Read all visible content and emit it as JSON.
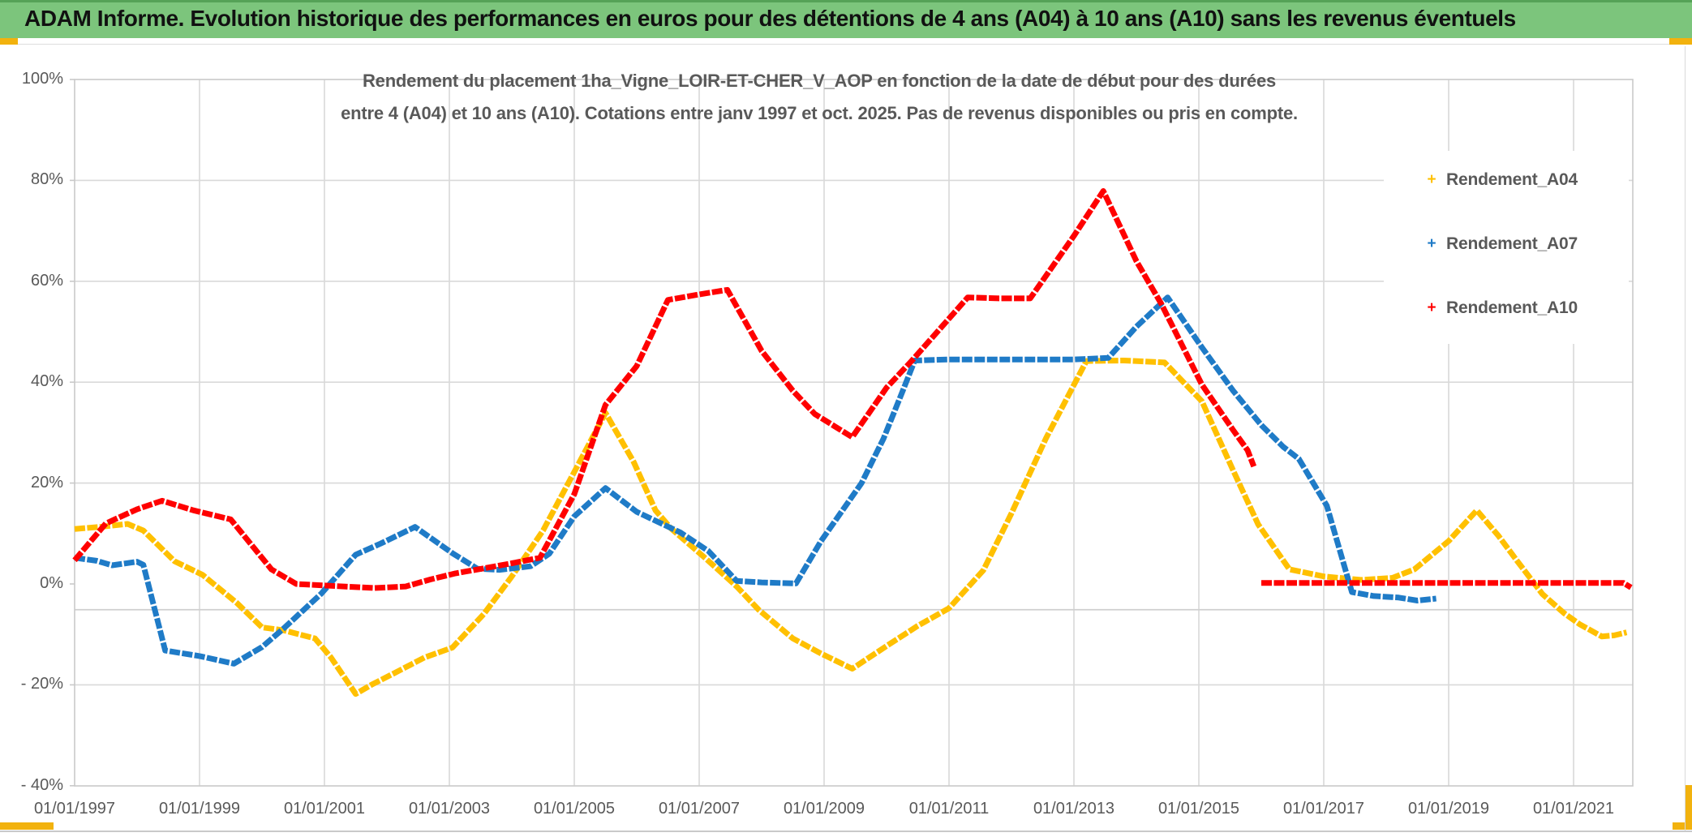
{
  "window": {
    "title": "ADAM Informe. Evolution historique des performances en euros pour des détentions de 4 ans (A04) à 10 ans (A10) sans les revenus éventuels"
  },
  "chart": {
    "subtitle_line1": "Rendement du placement 1ha_Vigne_LOIR-ET-CHER_V_AOP en fonction de la date de début pour des durées",
    "subtitle_line2": "entre 4 (A04) et 10 ans (A10). Cotations entre janv 1997 et oct. 2025. Pas de revenus disponibles ou pris en compte.",
    "colors": {
      "header_green": "#7cc57c",
      "header_green_dark": "#55a257",
      "accent_gold": "#f2b20e",
      "series_a04": "#FFC000",
      "series_a07": "#1F7BC7",
      "series_a10": "#FF0000",
      "gridline": "#d9d9d9",
      "axis_text": "#595959"
    }
  },
  "chart_data": {
    "type": "line",
    "title": "Rendement du placement 1ha_Vigne_LOIR-ET-CHER_V_AOP en fonction de la date de début pour des durées entre 4 (A04) et 10 ans (A10). Cotations entre janv 1997 et oct. 2025. Pas de revenus disponibles ou pris en compte.",
    "xlabel": "",
    "ylabel": "",
    "grid": true,
    "legend_position": "right",
    "x_axis": {
      "tick_labels": [
        "01/01/1997",
        "01/01/1999",
        "01/01/2001",
        "01/01/2003",
        "01/01/2005",
        "01/01/2007",
        "01/01/2009",
        "01/01/2011",
        "01/01/2013",
        "01/01/2015",
        "01/01/2017",
        "01/01/2019",
        "01/01/2021"
      ],
      "tick_years": [
        1997,
        1999,
        2001,
        2003,
        2005,
        2007,
        2009,
        2011,
        2013,
        2015,
        2017,
        2019,
        2021
      ],
      "range_years": [
        1997.0,
        2022.0
      ]
    },
    "y_axis": {
      "tick_labels": [
        "100%",
        "80%",
        "60%",
        "40%",
        "20%",
        "0%",
        "- 20%",
        "- 40%"
      ],
      "tick_values": [
        100,
        80,
        60,
        40,
        20,
        0,
        -20,
        -40
      ],
      "ylim": [
        -40,
        100
      ],
      "extra_reference_line": -5.1,
      "unit": "percent"
    },
    "series": [
      {
        "name": "Rendement_A04",
        "color": "#FFC000",
        "marker": "+",
        "segments": [
          [
            [
              1997.0,
              10.9
            ],
            [
              1997.4,
              11.3
            ],
            [
              1997.85,
              11.9
            ],
            [
              1998.1,
              10.6
            ],
            [
              1998.6,
              4.5
            ],
            [
              1999.05,
              1.8
            ],
            [
              1999.6,
              -3.8
            ],
            [
              2000.0,
              -8.6
            ],
            [
              2000.35,
              -9.2
            ],
            [
              2000.85,
              -10.8
            ],
            [
              2001.1,
              -14.5
            ],
            [
              2001.5,
              -21.8
            ],
            [
              2001.75,
              -20.0
            ],
            [
              2002.1,
              -17.8
            ],
            [
              2002.6,
              -14.6
            ],
            [
              2003.05,
              -12.6
            ],
            [
              2003.55,
              -6.0
            ],
            [
              2004.0,
              1.5
            ],
            [
              2004.5,
              10.6
            ],
            [
              2005.0,
              22.2
            ],
            [
              2005.5,
              33.9
            ],
            [
              2005.95,
              24.2
            ],
            [
              2006.3,
              14.6
            ],
            [
              2006.55,
              11.0
            ],
            [
              2007.1,
              5.1
            ],
            [
              2007.6,
              -0.5
            ],
            [
              2007.95,
              -5.1
            ],
            [
              2008.5,
              -10.8
            ],
            [
              2008.95,
              -13.8
            ],
            [
              2009.45,
              -16.8
            ],
            [
              2010.0,
              -12.3
            ],
            [
              2010.5,
              -8.3
            ],
            [
              2011.0,
              -4.8
            ],
            [
              2011.55,
              2.7
            ],
            [
              2012.0,
              14.0
            ],
            [
              2012.55,
              28.8
            ],
            [
              2013.2,
              44.2
            ],
            [
              2013.8,
              44.3
            ],
            [
              2014.45,
              43.9
            ],
            [
              2015.05,
              36.2
            ],
            [
              2015.55,
              22.5
            ],
            [
              2015.95,
              11.8
            ],
            [
              2016.45,
              2.9
            ],
            [
              2017.0,
              1.5
            ],
            [
              2017.6,
              0.8
            ],
            [
              2018.1,
              1.2
            ],
            [
              2018.45,
              2.9
            ],
            [
              2019.0,
              8.5
            ],
            [
              2019.45,
              14.6
            ],
            [
              2019.8,
              9.5
            ],
            [
              2020.1,
              4.5
            ],
            [
              2020.5,
              -2.0
            ],
            [
              2020.85,
              -5.8
            ],
            [
              2021.1,
              -8.0
            ],
            [
              2021.45,
              -10.4
            ],
            [
              2021.65,
              -10.2
            ],
            [
              2021.85,
              -9.6
            ]
          ]
        ]
      },
      {
        "name": "Rendement_A07",
        "color": "#1F7BC7",
        "marker": "+",
        "segments": [
          [
            [
              1997.0,
              5.2
            ],
            [
              1997.35,
              4.6
            ],
            [
              1997.6,
              3.7
            ],
            [
              1998.0,
              4.4
            ],
            [
              1998.1,
              3.8
            ],
            [
              1998.45,
              -13.2
            ],
            [
              1999.0,
              -14.3
            ],
            [
              1999.55,
              -15.8
            ],
            [
              2000.0,
              -12.5
            ],
            [
              2000.35,
              -8.8
            ],
            [
              2000.95,
              -1.9
            ],
            [
              2001.5,
              5.8
            ],
            [
              2001.9,
              8.0
            ],
            [
              2002.45,
              11.3
            ],
            [
              2003.05,
              6.1
            ],
            [
              2003.45,
              3.0
            ],
            [
              2003.8,
              2.8
            ],
            [
              2004.3,
              3.5
            ],
            [
              2004.6,
              6.0
            ],
            [
              2005.0,
              13.4
            ],
            [
              2005.5,
              19.0
            ],
            [
              2006.0,
              14.3
            ],
            [
              2006.7,
              10.2
            ],
            [
              2007.15,
              6.5
            ],
            [
              2007.6,
              0.6
            ],
            [
              2008.0,
              0.3
            ],
            [
              2008.55,
              0.1
            ],
            [
              2008.95,
              8.5
            ],
            [
              2009.6,
              20.0
            ],
            [
              2009.95,
              28.8
            ],
            [
              2010.25,
              38.0
            ],
            [
              2010.45,
              44.3
            ],
            [
              2011.0,
              44.5
            ],
            [
              2012.0,
              44.5
            ],
            [
              2013.0,
              44.5
            ],
            [
              2013.55,
              44.8
            ],
            [
              2014.0,
              51.0
            ],
            [
              2014.5,
              56.8
            ],
            [
              2015.05,
              46.9
            ],
            [
              2015.55,
              38.3
            ],
            [
              2016.0,
              31.5
            ],
            [
              2016.35,
              27.2
            ],
            [
              2016.6,
              24.8
            ],
            [
              2017.05,
              15.5
            ],
            [
              2017.45,
              -1.6
            ],
            [
              2017.8,
              -2.4
            ],
            [
              2018.2,
              -2.7
            ],
            [
              2018.5,
              -3.3
            ],
            [
              2018.8,
              -2.9
            ]
          ]
        ]
      },
      {
        "name": "Rendement_A10",
        "color": "#FF0000",
        "marker": "+",
        "segments": [
          [
            [
              1997.0,
              4.7
            ],
            [
              1997.5,
              12.0
            ],
            [
              1998.0,
              14.8
            ],
            [
              1998.4,
              16.5
            ],
            [
              1998.9,
              14.6
            ],
            [
              1999.5,
              12.8
            ],
            [
              2000.15,
              2.9
            ],
            [
              2000.55,
              0.0
            ],
            [
              2001.0,
              -0.3
            ],
            [
              2001.8,
              -0.8
            ],
            [
              2002.3,
              -0.5
            ],
            [
              2002.7,
              0.9
            ],
            [
              2003.1,
              2.1
            ],
            [
              2003.6,
              3.2
            ],
            [
              2004.0,
              4.1
            ],
            [
              2004.45,
              5.2
            ],
            [
              2005.0,
              17.8
            ],
            [
              2005.5,
              35.5
            ],
            [
              2006.0,
              43.2
            ],
            [
              2006.5,
              56.3
            ],
            [
              2007.0,
              57.4
            ],
            [
              2007.45,
              58.3
            ],
            [
              2008.0,
              46.2
            ],
            [
              2008.5,
              38.3
            ],
            [
              2008.85,
              33.7
            ],
            [
              2009.45,
              29.1
            ],
            [
              2010.0,
              38.9
            ],
            [
              2010.4,
              44.2
            ],
            [
              2010.9,
              51.2
            ],
            [
              2011.3,
              56.8
            ],
            [
              2011.8,
              56.6
            ],
            [
              2012.3,
              56.6
            ],
            [
              2013.0,
              69.0
            ],
            [
              2013.47,
              77.9
            ],
            [
              2014.0,
              64.0
            ],
            [
              2014.4,
              55.5
            ],
            [
              2015.05,
              39.5
            ],
            [
              2015.55,
              30.5
            ],
            [
              2015.78,
              26.5
            ],
            [
              2015.88,
              23.3
            ]
          ],
          [
            [
              2016.0,
              0.2
            ],
            [
              2021.8,
              0.2
            ],
            [
              2021.92,
              -0.7
            ]
          ]
        ]
      }
    ]
  }
}
